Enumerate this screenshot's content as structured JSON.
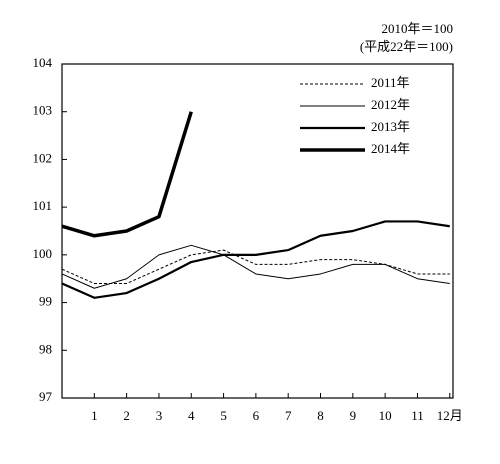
{
  "chart_data": {
    "type": "line",
    "annotations": [
      "2010年＝100",
      "(平成22年＝100)"
    ],
    "x": [
      0,
      1,
      2,
      3,
      4,
      5,
      6,
      7,
      8,
      9,
      10,
      11,
      12
    ],
    "xlim": [
      0,
      12.1
    ],
    "xticks": [
      1,
      2,
      3,
      4,
      5,
      6,
      7,
      8,
      9,
      10,
      11,
      {
        "value": 12,
        "label": "12月"
      }
    ],
    "ylim": [
      97,
      104
    ],
    "yticks": [
      97,
      98,
      99,
      100,
      101,
      102,
      103,
      104
    ],
    "grid": false,
    "legend": "upper right",
    "series": [
      {
        "name": "2011年",
        "color": "#000000",
        "line_width": 1,
        "dashed": true,
        "values": [
          99.7,
          99.4,
          99.4,
          99.7,
          100.0,
          100.1,
          99.8,
          99.8,
          99.9,
          99.9,
          99.8,
          99.6,
          99.6
        ]
      },
      {
        "name": "2012年",
        "color": "#000000",
        "line_width": 1,
        "dashed": false,
        "values": [
          99.6,
          99.3,
          99.5,
          100.0,
          100.2,
          100.0,
          99.6,
          99.5,
          99.6,
          99.8,
          99.8,
          99.5,
          99.4
        ]
      },
      {
        "name": "2013年",
        "color": "#000000",
        "line_width": 2.2,
        "dashed": false,
        "values": [
          99.4,
          99.1,
          99.2,
          99.5,
          99.85,
          100.0,
          100.0,
          100.1,
          100.4,
          100.5,
          100.7,
          100.7,
          100.6
        ]
      },
      {
        "name": "2014年",
        "color": "#000000",
        "line_width": 3.5,
        "dashed": false,
        "values": [
          100.6,
          100.4,
          100.5,
          100.8,
          103.0,
          null,
          null,
          null,
          null,
          null,
          null,
          null,
          null
        ]
      }
    ]
  }
}
